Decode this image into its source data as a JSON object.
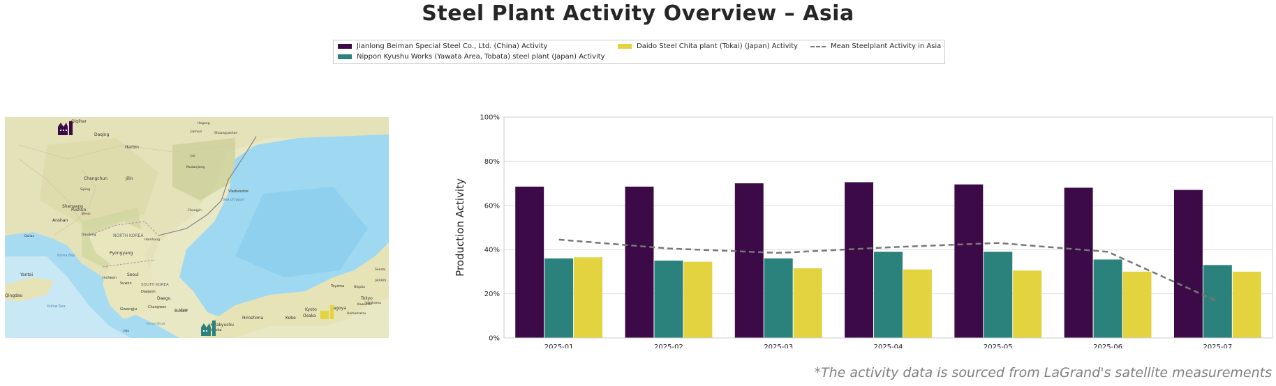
{
  "title": "Steel Plant Activity Overview – Asia",
  "legend": {
    "items": [
      {
        "label": "Jianlong Beiman Special Steel Co., Ltd. (China) Activity",
        "color": "#3b0a47"
      },
      {
        "label": "Nippon Kyushu Works (Yawata Area, Tobata) steel plant (Japan) Activity",
        "color": "#2b817b"
      },
      {
        "label": "Daido Steel Chita plant (Tokai) (Japan) Activity",
        "color": "#e2d33f"
      },
      {
        "label": "Mean Steelplant Activity in Asia",
        "color": "#777777"
      }
    ]
  },
  "map": {
    "labels": [
      "Qiqihar",
      "Daqing",
      "Harbin",
      "Changchun",
      "Jilin",
      "Siping",
      "Shenyang",
      "Fushun",
      "Anshan",
      "Benxi",
      "Dandong",
      "Dalian",
      "NORTH KOREA",
      "Pyongyang",
      "Hamhung",
      "Chongjin",
      "Vladivostok",
      "Incheon",
      "Seoul",
      "Suwon",
      "Daejeon",
      "SOUTH KOREA",
      "Daegu",
      "Ulsan",
      "Busan",
      "Gwangju",
      "Changwon",
      "Jeju",
      "Kitakyushu",
      "Fukuoka",
      "Hiroshima",
      "Osaka",
      "Kobe",
      "Kyoto",
      "Nagoya",
      "Toyama",
      "Niigata",
      "Sendai",
      "Tokyo",
      "Kawasaki",
      "Yokohama",
      "Hamamatsu",
      "Yantai",
      "Qingdao",
      "Jixi",
      "Mudanjiang",
      "Hegang",
      "Jiamusi",
      "Shuangyashan",
      "Sea of Japan",
      "Korea Bay",
      "Yellow Sea",
      "Korea Strait",
      "JAPAN"
    ]
  },
  "chart_data": {
    "type": "bar",
    "categories": [
      "2025-01",
      "2025-02",
      "2025-03",
      "2025-04",
      "2025-05",
      "2025-06",
      "2025-07"
    ],
    "series": [
      {
        "name": "Jianlong Beiman Special Steel Co., Ltd. (China) Activity",
        "values": [
          68.5,
          68.5,
          70.0,
          70.5,
          69.5,
          68.0,
          67.0
        ],
        "color": "#3b0a47"
      },
      {
        "name": "Nippon Kyushu Works (Yawata Area, Tobata) steel plant (Japan) Activity",
        "values": [
          36.0,
          35.0,
          36.0,
          39.0,
          39.0,
          35.5,
          33.0
        ],
        "color": "#2b817b"
      },
      {
        "name": "Daido Steel Chita plant (Tokai) (Japan) Activity",
        "values": [
          36.5,
          34.5,
          31.5,
          31.0,
          30.5,
          30.0,
          30.0
        ],
        "color": "#e2d33f"
      }
    ],
    "line": {
      "name": "Mean Steelplant Activity in Asia",
      "values": [
        44.5,
        40.5,
        38.5,
        41.0,
        43.0,
        39.0,
        16.5
      ],
      "color": "#777777",
      "style": "dashed"
    },
    "ylabel": "Production Activity",
    "ylim": [
      0,
      100
    ],
    "yticks": [
      "0%",
      "20%",
      "40%",
      "60%",
      "80%",
      "100%"
    ],
    "grid": true
  },
  "footnote": "*The activity data is sourced from LaGrand's satellite measurements"
}
